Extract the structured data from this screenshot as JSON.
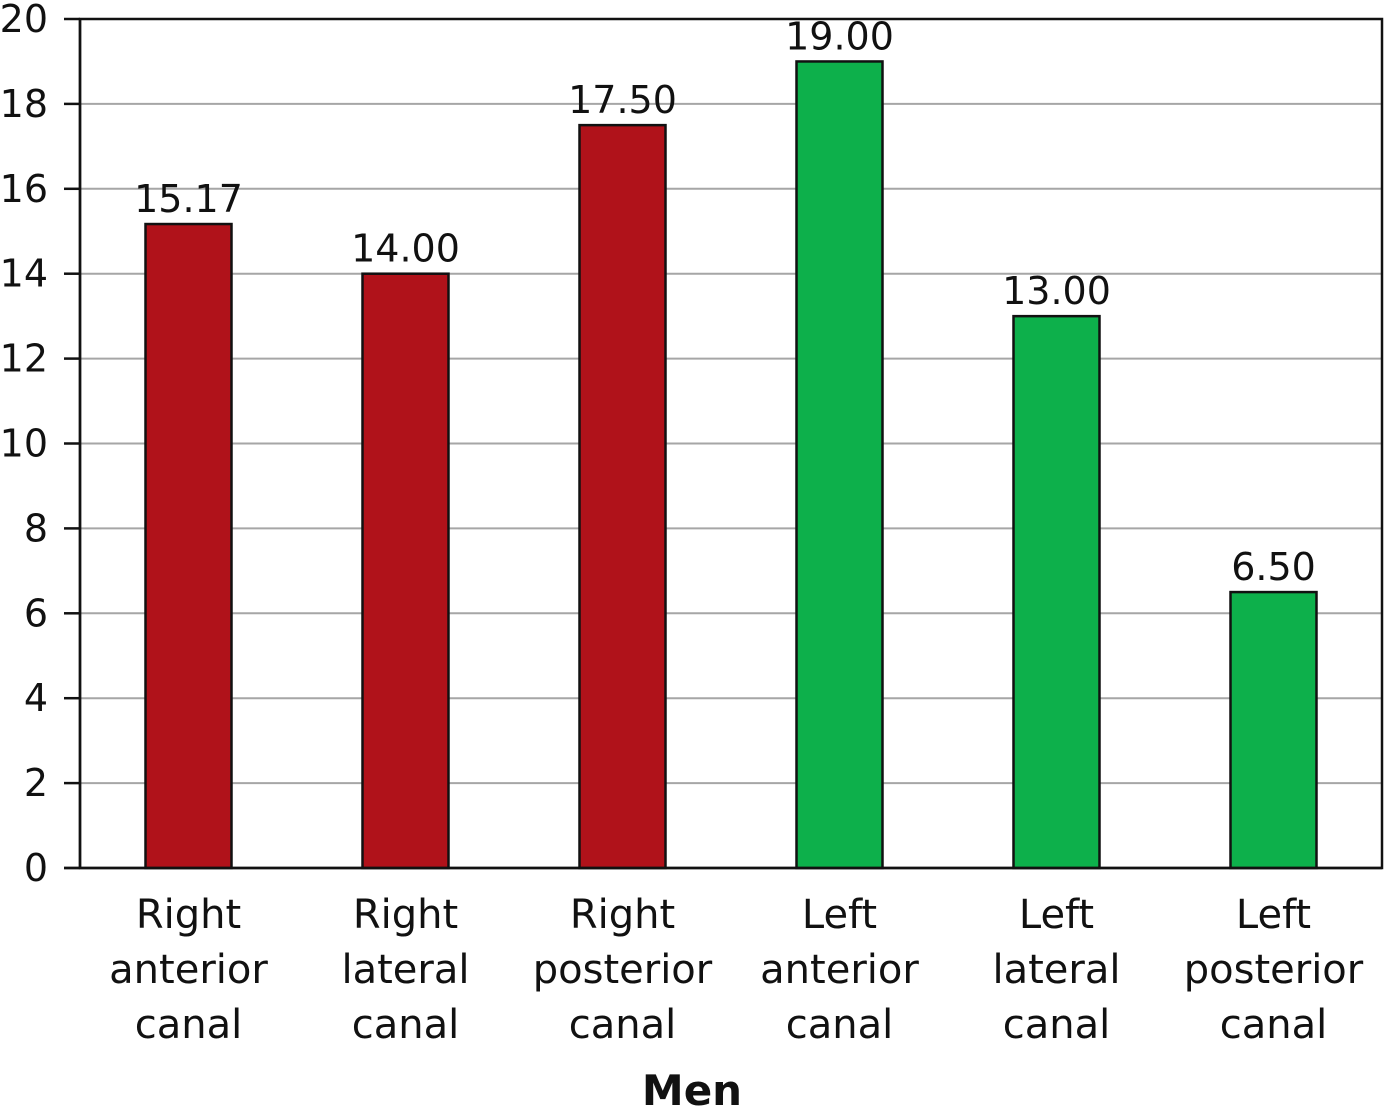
{
  "chart_data": {
    "type": "bar",
    "title": "",
    "xlabel": "Men",
    "ylabel": "",
    "ylim": [
      0,
      20
    ],
    "yticks": [
      "0",
      "2",
      "4",
      "6",
      "8",
      "10",
      "12",
      "14",
      "16",
      "18",
      "20"
    ],
    "grid": true,
    "categories": [
      [
        "Right",
        "anterior",
        "canal"
      ],
      [
        "Right",
        "lateral",
        "canal"
      ],
      [
        "Right",
        "posterior",
        "canal"
      ],
      [
        "Left",
        "anterior",
        "canal"
      ],
      [
        "Left",
        "lateral",
        "canal"
      ],
      [
        "Left",
        "posterior",
        "canal"
      ]
    ],
    "values": [
      15.17,
      14.0,
      17.5,
      19.0,
      13.0,
      6.5
    ],
    "data_labels": [
      "15.17",
      "14.00",
      "17.50",
      "19.00",
      "13.00",
      "6.50"
    ],
    "bar_colors": [
      "#b0121a",
      "#b0121a",
      "#b0121a",
      "#0db04b",
      "#0db04b",
      "#0db04b"
    ]
  }
}
